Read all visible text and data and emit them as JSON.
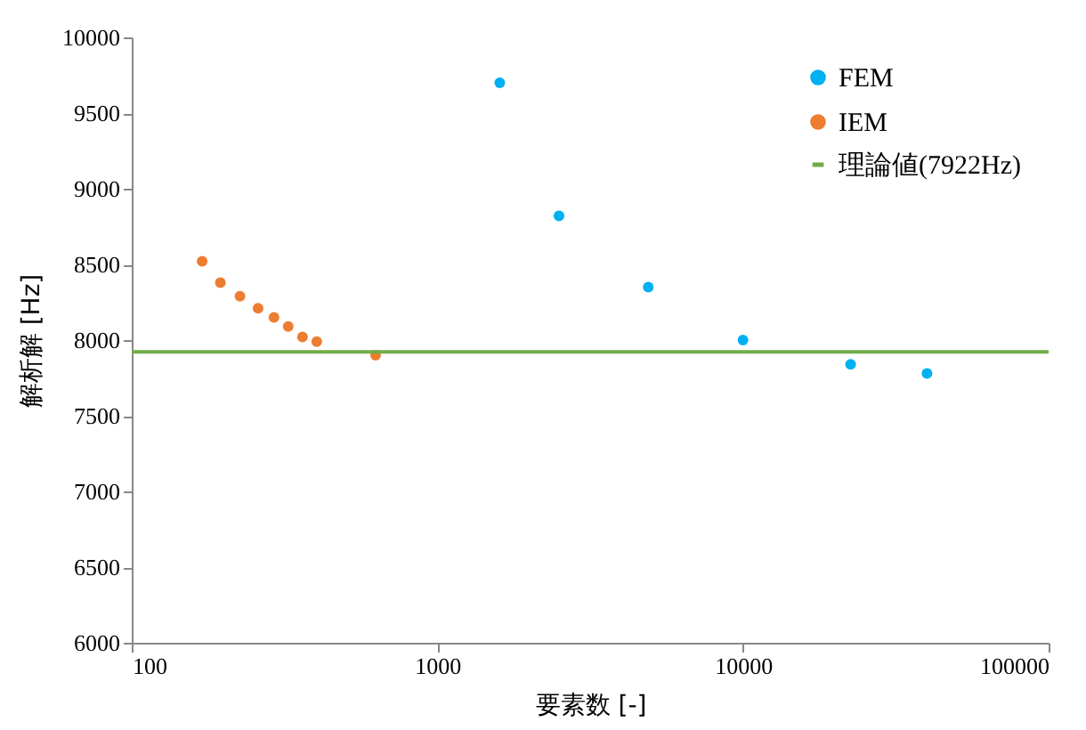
{
  "chart_data": {
    "type": "scatter",
    "xlabel": "要素数 [-]",
    "ylabel": "解析解 [Hz]",
    "log": "x",
    "grid": false,
    "legend": "top right",
    "marker": "circle",
    "xlim": [
      100,
      100000
    ],
    "xticks": [
      100,
      1000,
      10000,
      100000
    ],
    "ylim": [
      6000,
      10000
    ],
    "yticks": [
      6000,
      6500,
      7000,
      7500,
      8000,
      8500,
      9000,
      9500,
      10000
    ],
    "series": [
      {
        "name": "FEM",
        "color": "#00b0f0",
        "x": [
          1600,
          2500,
          4900,
          10000,
          22500,
          40000
        ],
        "values": [
          9700,
          8820,
          8350,
          8000,
          7840,
          7780
        ]
      },
      {
        "name": "IEM",
        "color": "#ed7d31",
        "x": [
          170,
          195,
          226,
          259,
          292,
          325,
          362,
          403,
          628
        ],
        "values": [
          8520,
          8380,
          8290,
          8210,
          8150,
          8090,
          8020,
          7990,
          7900
        ]
      }
    ],
    "ref_lines": [
      {
        "axis": "y",
        "value": 7922,
        "label": "理論値(7922Hz)",
        "color": "#70ad47"
      }
    ]
  }
}
